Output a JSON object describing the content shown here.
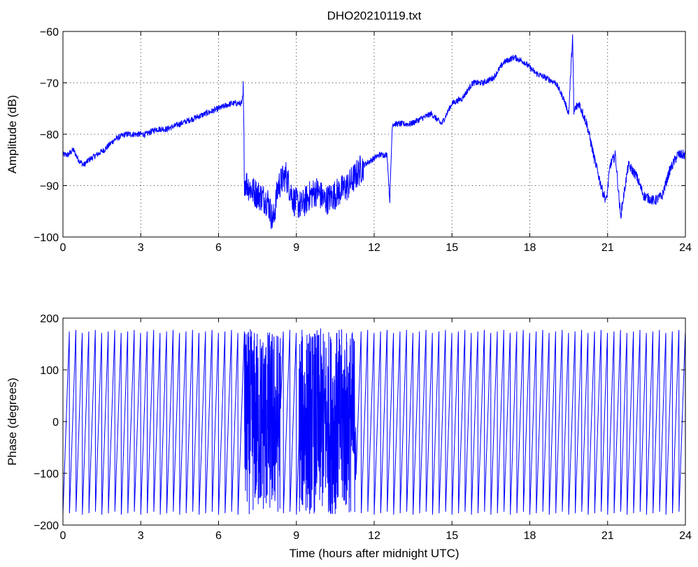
{
  "chart_data": [
    {
      "type": "line",
      "title": "DHO20210119.txt",
      "xlabel": "",
      "ylabel": "Amplitude (dB)",
      "xlim": [
        0,
        24
      ],
      "ylim": [
        -100,
        -60
      ],
      "xticks": [
        0,
        3,
        6,
        9,
        12,
        15,
        18,
        21,
        24
      ],
      "yticks": [
        -100,
        -90,
        -80,
        -70,
        -60
      ],
      "xtick_labels": [
        "0",
        "3",
        "6",
        "9",
        "12",
        "15",
        "18",
        "21",
        "24"
      ],
      "ytick_labels": [
        "−100",
        "−90",
        "−80",
        "−70",
        "−60"
      ],
      "grid": true,
      "series_color": "#0000ff",
      "series": [
        {
          "values_note": "",
          "x": [
            0,
            0.2,
            0.4,
            0.6,
            0.8,
            1.0,
            1.3,
            1.6,
            2.0,
            2.4,
            2.8,
            3.2,
            3.6,
            4.0,
            4.5,
            5.0,
            5.5,
            6.0,
            6.5,
            6.9,
            6.95,
            7.0,
            7.3,
            7.6,
            7.9,
            8.1,
            8.3,
            8.6,
            8.9,
            9.2,
            9.5,
            9.8,
            10.1,
            10.4,
            10.7,
            11.0,
            11.3,
            11.6,
            11.9,
            12.2,
            12.5,
            12.6,
            12.7,
            13.0,
            13.4,
            13.8,
            14.2,
            14.6,
            15.0,
            15.4,
            15.8,
            16.2,
            16.6,
            17.0,
            17.4,
            17.8,
            18.2,
            18.6,
            19.0,
            19.3,
            19.5,
            19.65,
            19.7,
            19.75,
            19.9,
            20.2,
            20.5,
            20.8,
            20.95,
            21.1,
            21.3,
            21.5,
            21.8,
            22.1,
            22.4,
            22.8,
            23.1,
            23.4,
            23.7,
            24.0
          ],
          "y": [
            -84,
            -84,
            -83,
            -85,
            -86,
            -85,
            -84,
            -83,
            -81,
            -80,
            -80,
            -80,
            -79,
            -79,
            -78,
            -77,
            -76,
            -75,
            -74,
            -74,
            -72,
            -89,
            -91,
            -92,
            -93,
            -97,
            -90,
            -88,
            -93,
            -94,
            -92,
            -91,
            -93,
            -92,
            -91,
            -90,
            -88,
            -86,
            -85,
            -84,
            -84,
            -93,
            -78,
            -78,
            -78,
            -77,
            -76,
            -78,
            -74,
            -73,
            -70,
            -70,
            -69,
            -66,
            -65,
            -66,
            -68,
            -69,
            -70,
            -73,
            -76,
            -61,
            -76,
            -75,
            -74,
            -78,
            -85,
            -91,
            -93,
            -86,
            -84,
            -96,
            -86,
            -88,
            -92,
            -93,
            -92,
            -87,
            -84,
            -84
          ]
        }
      ]
    },
    {
      "type": "line",
      "title": "",
      "xlabel": "Time (hours after midnight UTC)",
      "ylabel": "Phase (degrees)",
      "xlim": [
        0,
        24
      ],
      "ylim": [
        -200,
        200
      ],
      "xticks": [
        0,
        3,
        6,
        9,
        12,
        15,
        18,
        21,
        24
      ],
      "yticks": [
        -200,
        -100,
        0,
        100,
        200
      ],
      "xtick_labels": [
        "0",
        "3",
        "6",
        "9",
        "12",
        "15",
        "18",
        "21",
        "24"
      ],
      "ytick_labels": [
        "−200",
        "−100",
        "0",
        "100",
        "200"
      ],
      "grid": false,
      "series_color": "#0000ff",
      "series": [
        {
          "phase_wrap_period_hours": 0.25,
          "y_min": -180,
          "y_max": 180
        }
      ]
    }
  ]
}
